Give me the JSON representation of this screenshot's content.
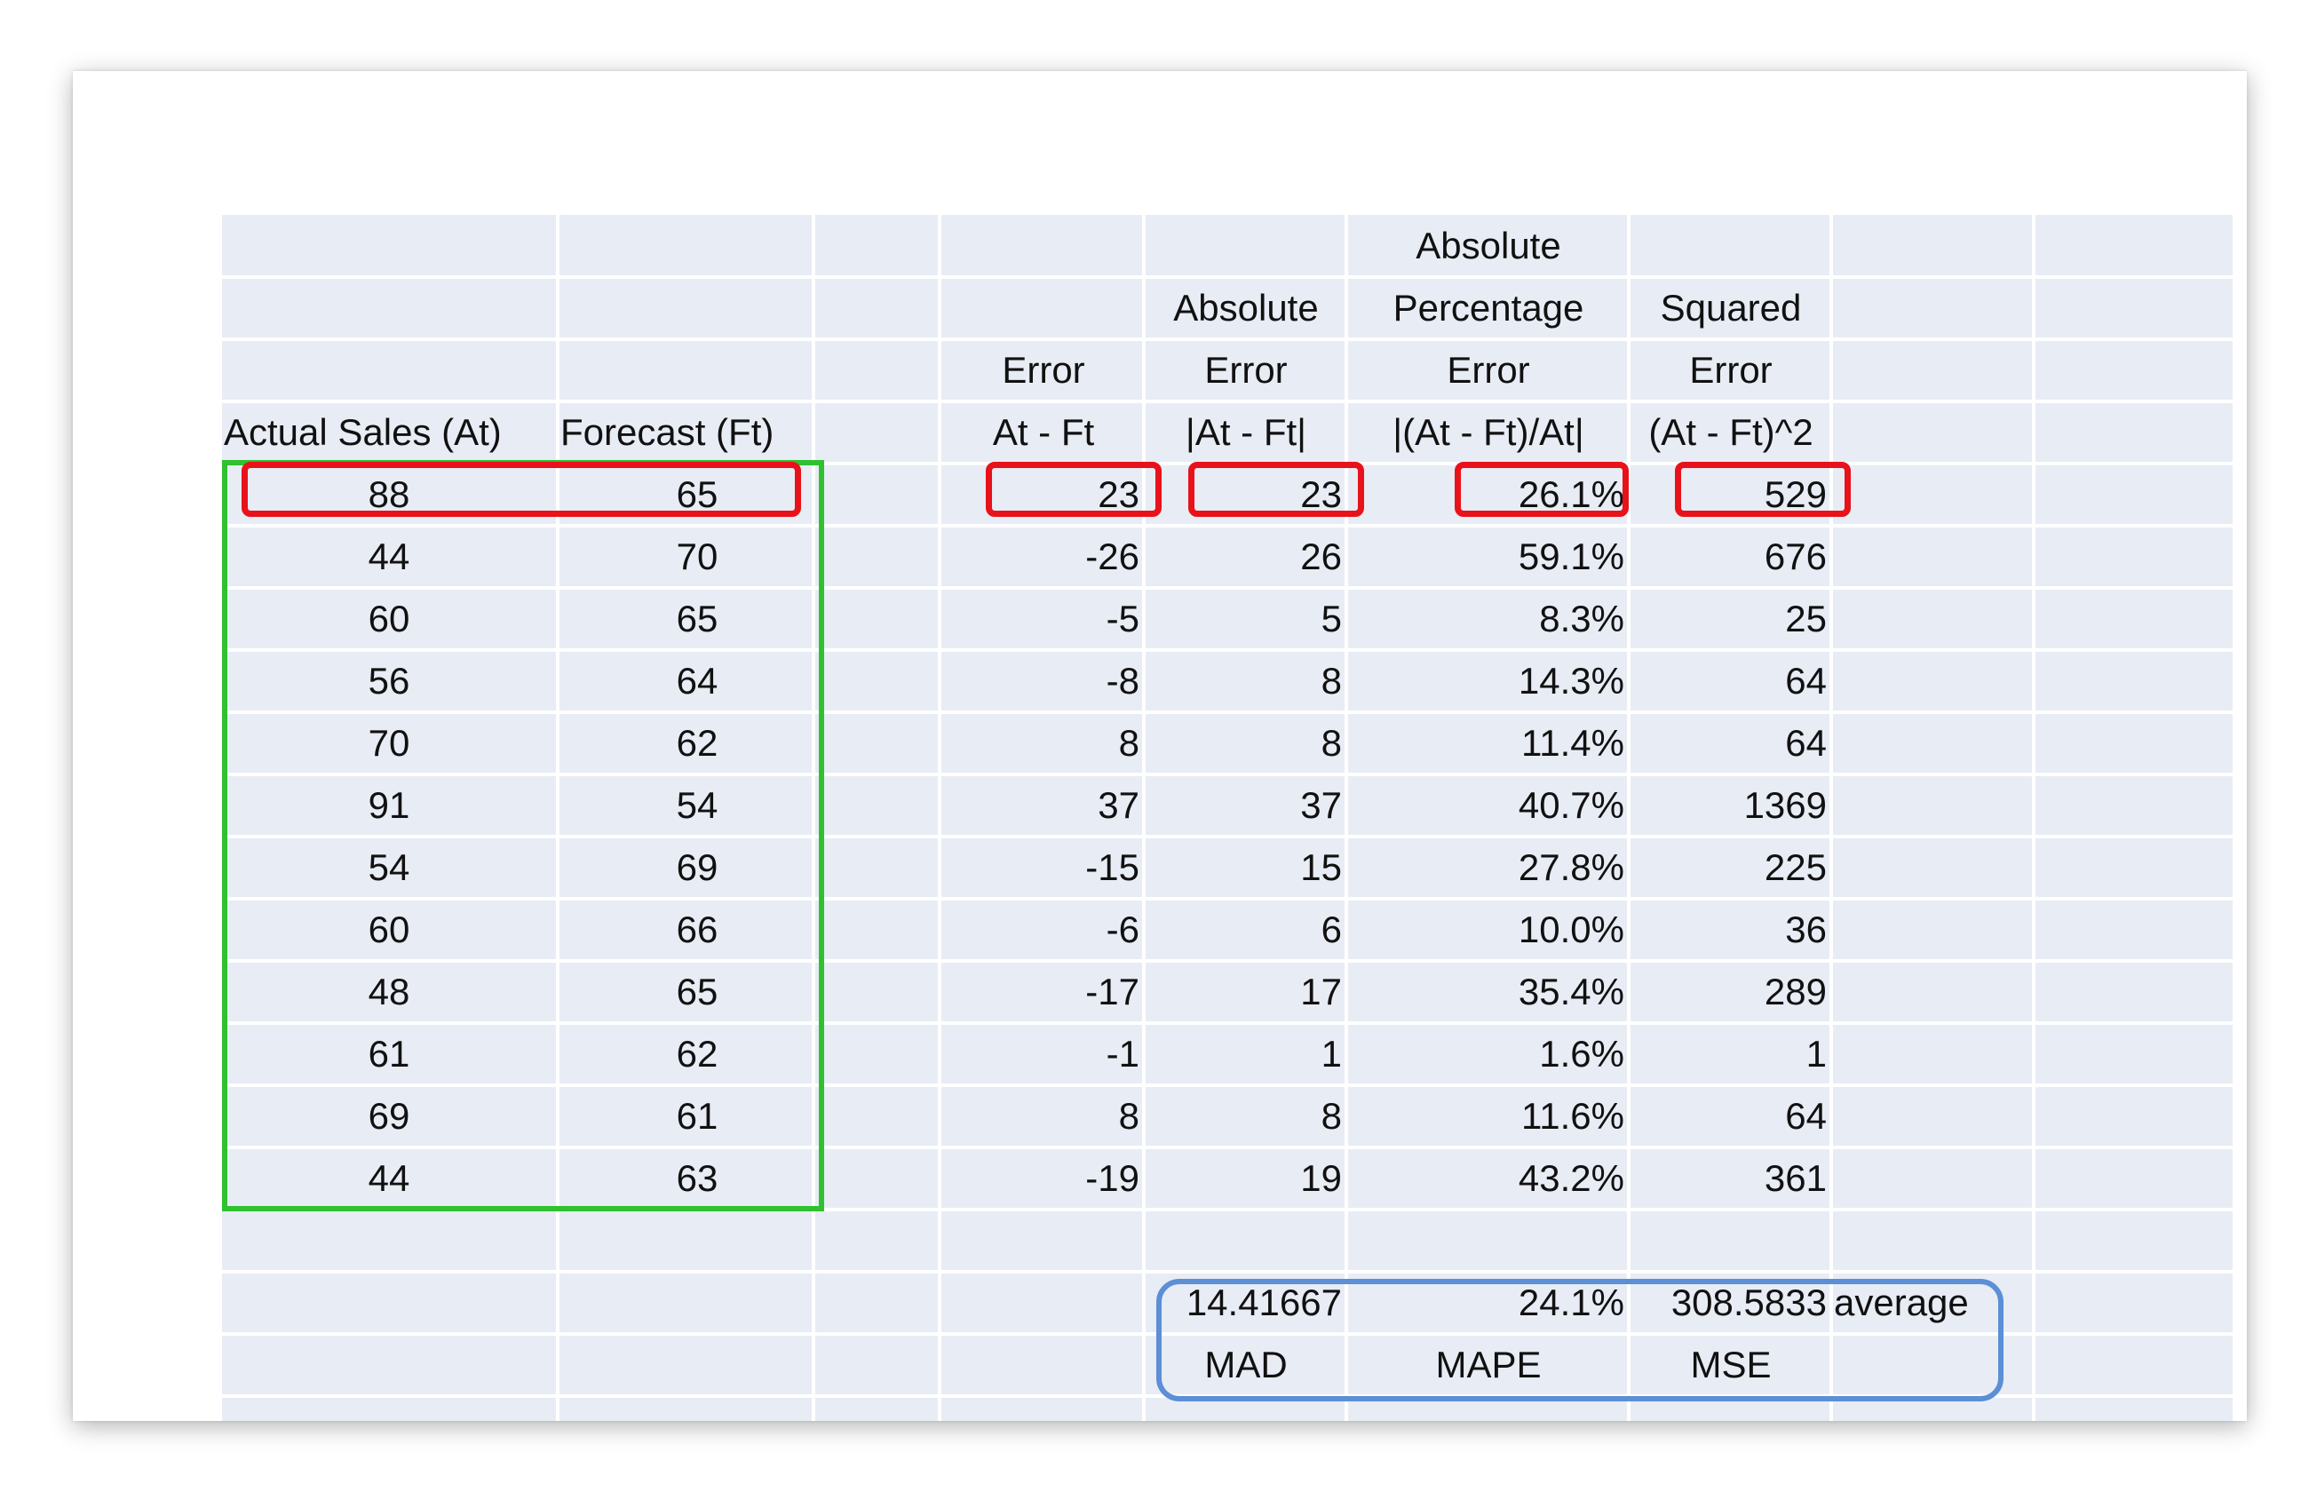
{
  "header": {
    "row1": {
      "percentage_error": "Absolute"
    },
    "row2": {
      "absolute_error": "Absolute",
      "percentage_error": "Percentage",
      "squared_error": "Squared"
    },
    "row3": {
      "error": "Error",
      "absolute_error": "Error",
      "percentage_error": "Error",
      "squared_error": "Error"
    },
    "row4": {
      "actual": "Actual Sales (At)",
      "forecast": "Forecast (Ft)",
      "error": "At - Ft",
      "absolute_error": "|At - Ft|",
      "percentage_error": "|(At - Ft)/At|",
      "squared_error": "(At - Ft)^2"
    }
  },
  "rows": [
    {
      "actual": "88",
      "forecast": "65",
      "error": "23",
      "abs_error": "23",
      "pct_error": "26.1%",
      "sq_error": "529"
    },
    {
      "actual": "44",
      "forecast": "70",
      "error": "-26",
      "abs_error": "26",
      "pct_error": "59.1%",
      "sq_error": "676"
    },
    {
      "actual": "60",
      "forecast": "65",
      "error": "-5",
      "abs_error": "5",
      "pct_error": "8.3%",
      "sq_error": "25"
    },
    {
      "actual": "56",
      "forecast": "64",
      "error": "-8",
      "abs_error": "8",
      "pct_error": "14.3%",
      "sq_error": "64"
    },
    {
      "actual": "70",
      "forecast": "62",
      "error": "8",
      "abs_error": "8",
      "pct_error": "11.4%",
      "sq_error": "64"
    },
    {
      "actual": "91",
      "forecast": "54",
      "error": "37",
      "abs_error": "37",
      "pct_error": "40.7%",
      "sq_error": "1369"
    },
    {
      "actual": "54",
      "forecast": "69",
      "error": "-15",
      "abs_error": "15",
      "pct_error": "27.8%",
      "sq_error": "225"
    },
    {
      "actual": "60",
      "forecast": "66",
      "error": "-6",
      "abs_error": "6",
      "pct_error": "10.0%",
      "sq_error": "36"
    },
    {
      "actual": "48",
      "forecast": "65",
      "error": "-17",
      "abs_error": "17",
      "pct_error": "35.4%",
      "sq_error": "289"
    },
    {
      "actual": "61",
      "forecast": "62",
      "error": "-1",
      "abs_error": "1",
      "pct_error": "1.6%",
      "sq_error": "1"
    },
    {
      "actual": "69",
      "forecast": "61",
      "error": "8",
      "abs_error": "8",
      "pct_error": "11.6%",
      "sq_error": "64"
    },
    {
      "actual": "44",
      "forecast": "63",
      "error": "-19",
      "abs_error": "19",
      "pct_error": "43.2%",
      "sq_error": "361"
    }
  ],
  "summary": {
    "mad_value": "14.41667",
    "mape_value": "24.1%",
    "mse_value": "308.5833",
    "average_label": "average",
    "mad_label": "MAD",
    "mape_label": "MAPE",
    "mse_label": "MSE"
  },
  "colors": {
    "sheet_background": "#e8ecf4",
    "grid_lines": "#ffffff",
    "highlight_red": "#e8121b",
    "highlight_green": "#2fc12f",
    "highlight_blue": "#5b8fd6",
    "text": "#111111"
  }
}
